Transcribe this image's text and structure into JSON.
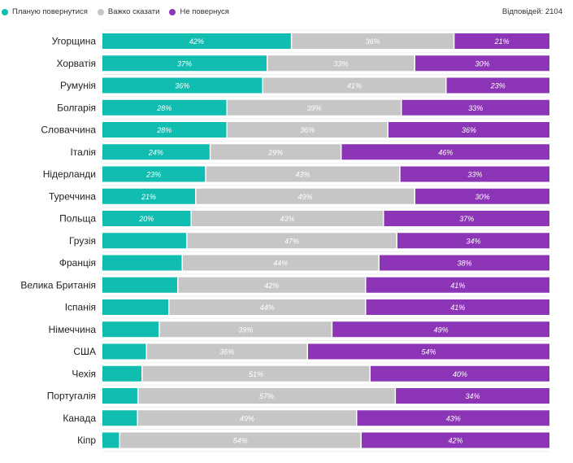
{
  "legend": {
    "items": [
      {
        "label": "Планую повернутися",
        "color": "#11bdb0"
      },
      {
        "label": "Важко сказати",
        "color": "#c6c6c6"
      },
      {
        "label": "Не повернуся",
        "color": "#8c35b6"
      }
    ]
  },
  "responses_label": "Відповідей: 2104",
  "chart_data": {
    "type": "bar",
    "orientation": "horizontal",
    "stacked": true,
    "percent_stacked": true,
    "title": "",
    "xlabel": "",
    "ylabel": "",
    "categories": [
      "Угорщина",
      "Хорватія",
      "Румунія",
      "Болгарія",
      "Словаччина",
      "Італія",
      "Нідерланди",
      "Туреччина",
      "Польща",
      "Грузія",
      "Франція",
      "Велика Британія",
      "Іспанія",
      "Німеччина",
      "США",
      "Чехія",
      "Португалія",
      "Канада",
      "Кіпр"
    ],
    "series": [
      {
        "name": "Планую повернутися",
        "color": "#11bdb0",
        "values": [
          42,
          37,
          36,
          28,
          28,
          24,
          23,
          21,
          20,
          19,
          18,
          17,
          15,
          13,
          10,
          9,
          8,
          8,
          4
        ],
        "labels": [
          "42%",
          "37%",
          "36%",
          "28%",
          "28%",
          "24%",
          "23%",
          "21%",
          "20%",
          "",
          "",
          "",
          "",
          "",
          "",
          "",
          "",
          "",
          ""
        ]
      },
      {
        "name": "Важко сказати",
        "color": "#c6c6c6",
        "values": [
          36,
          33,
          41,
          39,
          36,
          29,
          43,
          49,
          43,
          47,
          44,
          42,
          44,
          39,
          36,
          51,
          57,
          49,
          54
        ],
        "labels": [
          "36%",
          "33%",
          "41%",
          "39%",
          "36%",
          "29%",
          "43%",
          "49%",
          "43%",
          "47%",
          "44%",
          "42%",
          "44%",
          "39%",
          "36%",
          "51%",
          "57%",
          "49%",
          "54%"
        ]
      },
      {
        "name": "Не повернуся",
        "color": "#8c35b6",
        "values": [
          21,
          30,
          23,
          33,
          36,
          46,
          33,
          30,
          37,
          34,
          38,
          41,
          41,
          49,
          54,
          40,
          34,
          43,
          42
        ],
        "labels": [
          "21%",
          "30%",
          "23%",
          "33%",
          "36%",
          "46%",
          "33%",
          "30%",
          "37%",
          "34%",
          "38%",
          "41%",
          "41%",
          "49%",
          "54%",
          "40%",
          "34%",
          "43%",
          "42%"
        ]
      }
    ]
  }
}
